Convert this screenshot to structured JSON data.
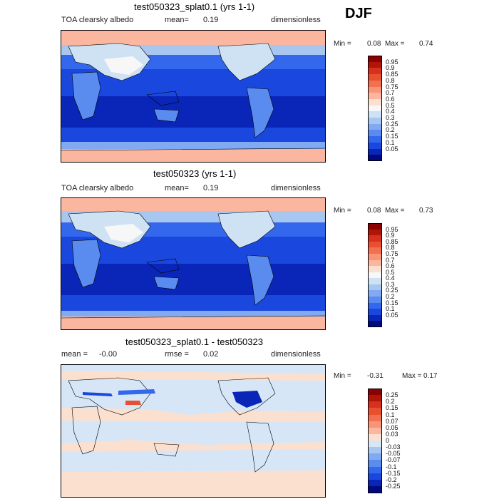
{
  "season": "DJF",
  "panels": [
    {
      "title": "test050323_splat0.1 (yrs 1-1)",
      "left_label": "TOA clearsky albedo",
      "mean_label": "mean=",
      "mean_value": "0.19",
      "units": "dimensionless",
      "min_label": "Min =",
      "min_value": "0.08",
      "max_label": "Max =",
      "max_value": "0.74",
      "colorbar": {
        "labels": [
          "0.95",
          "0.9",
          "0.85",
          "0.8",
          "0.75",
          "0.7",
          "0.6",
          "0.5",
          "0.4",
          "0.3",
          "0.25",
          "0.2",
          "0.15",
          "0.1",
          "0.05"
        ],
        "colors": [
          "#8b0000",
          "#b01505",
          "#d7301f",
          "#e8502f",
          "#f2704f",
          "#f99477",
          "#fbb69f",
          "#fce0cf",
          "#f7f7f7",
          "#cfe2f3",
          "#a7c6f0",
          "#82aaf2",
          "#5a8cf0",
          "#3468ec",
          "#1a48df",
          "#0a26b8",
          "#000a80"
        ]
      }
    },
    {
      "title": "test050323 (yrs 1-1)",
      "left_label": "TOA clearsky albedo",
      "mean_label": "mean=",
      "mean_value": "0.19",
      "units": "dimensionless",
      "min_label": "Min =",
      "min_value": "0.08",
      "max_label": "Max =",
      "max_value": "0.73",
      "colorbar": {
        "labels": [
          "0.95",
          "0.9",
          "0.85",
          "0.8",
          "0.75",
          "0.7",
          "0.6",
          "0.5",
          "0.4",
          "0.3",
          "0.25",
          "0.2",
          "0.15",
          "0.1",
          "0.05"
        ],
        "colors": [
          "#8b0000",
          "#b01505",
          "#d7301f",
          "#e8502f",
          "#f2704f",
          "#f99477",
          "#fbb69f",
          "#fce0cf",
          "#f7f7f7",
          "#cfe2f3",
          "#a7c6f0",
          "#82aaf2",
          "#5a8cf0",
          "#3468ec",
          "#1a48df",
          "#0a26b8",
          "#000a80"
        ]
      }
    },
    {
      "title": "test050323_splat0.1 - test050323",
      "left_label": "mean =",
      "left_value": "-0.00",
      "mean_label": "rmse =",
      "mean_value": "0.02",
      "units": "dimensionless",
      "min_label": "Min =",
      "min_value": "-0.31",
      "max_label": "Max =",
      "max_value": "0.17",
      "colorbar": {
        "labels": [
          "0.25",
          "0.2",
          "0.15",
          "0.1",
          "0.07",
          "0.05",
          "0.03",
          "0",
          "-0.03",
          "-0.05",
          "-0.07",
          "-0.1",
          "-0.15",
          "-0.2",
          "-0.25"
        ],
        "colors": [
          "#8b0000",
          "#b01505",
          "#d7301f",
          "#e8502f",
          "#f2704f",
          "#f99477",
          "#fbb69f",
          "#fce0cf",
          "#d6e6f7",
          "#a7c6f0",
          "#82aaf2",
          "#5a8cf0",
          "#3468ec",
          "#1a48df",
          "#0a26b8",
          "#000a80"
        ]
      }
    }
  ],
  "chart_data": {
    "type": "heatmap",
    "season": "DJF",
    "maps": [
      {
        "title": "test050323_splat0.1 (yrs 1-1)",
        "field": "TOA clearsky albedo",
        "mean": 0.19,
        "min": 0.08,
        "max": 0.74,
        "units": "dimensionless",
        "levels": [
          0.05,
          0.1,
          0.15,
          0.2,
          0.25,
          0.3,
          0.4,
          0.5,
          0.6,
          0.7,
          0.75,
          0.8,
          0.85,
          0.9,
          0.95
        ]
      },
      {
        "title": "test050323 (yrs 1-1)",
        "field": "TOA clearsky albedo",
        "mean": 0.19,
        "min": 0.08,
        "max": 0.73,
        "units": "dimensionless",
        "levels": [
          0.05,
          0.1,
          0.15,
          0.2,
          0.25,
          0.3,
          0.4,
          0.5,
          0.6,
          0.7,
          0.75,
          0.8,
          0.85,
          0.9,
          0.95
        ]
      },
      {
        "title": "test050323_splat0.1 - test050323",
        "mean": -0.0,
        "rmse": 0.02,
        "min": -0.31,
        "max": 0.17,
        "units": "dimensionless",
        "levels": [
          -0.25,
          -0.2,
          -0.15,
          -0.1,
          -0.07,
          -0.05,
          -0.03,
          0,
          0.03,
          0.05,
          0.07,
          0.1,
          0.15,
          0.2,
          0.25
        ]
      }
    ]
  }
}
